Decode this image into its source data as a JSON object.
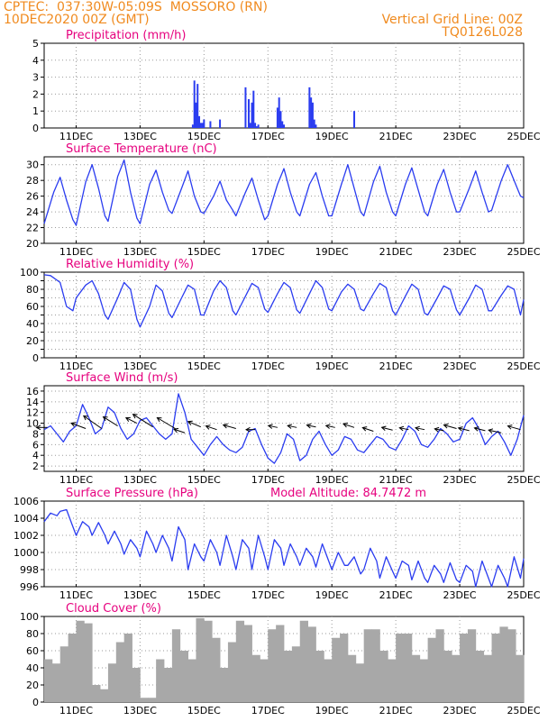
{
  "header": {
    "line1_left": "CPTEC:  037:30W-05:09S  MOSSORO (RN)",
    "line2_left": "10DEC2020 00Z (GMT)",
    "line2_right": "Vertical Grid Line: 00Z",
    "line3_right": "TQ0126L028"
  },
  "colors": {
    "header": "#f08a1e",
    "title": "#e6007e",
    "series": "#2a3cf0",
    "cloud": "#a8a8a8",
    "grid": "#9a9a9a"
  },
  "x_ticks": [
    "11DEC",
    "13DEC",
    "15DEC",
    "17DEC",
    "19DEC",
    "21DEC",
    "23DEC",
    "25DEC"
  ],
  "chart_data": [
    {
      "type": "bar",
      "title": "Precipitation (mm/h)",
      "ylim": [
        0,
        5
      ],
      "yticks": [
        0,
        1,
        2,
        3,
        4,
        5
      ],
      "xlim": [
        0,
        15
      ],
      "x": [
        4.65,
        4.7,
        4.75,
        4.8,
        4.85,
        4.9,
        4.95,
        5.0,
        5.2,
        5.5,
        6.3,
        6.4,
        6.45,
        6.5,
        6.55,
        6.6,
        6.65,
        6.7,
        7.3,
        7.35,
        7.4,
        7.45,
        7.5,
        8.3,
        8.35,
        8.4,
        8.45,
        8.5,
        9.7
      ],
      "values": [
        0.2,
        2.8,
        1.5,
        2.6,
        0.7,
        0.3,
        0.3,
        0.5,
        0.4,
        0.5,
        2.4,
        1.7,
        0.3,
        1.5,
        2.2,
        0.3,
        0.1,
        0.2,
        1.2,
        1.8,
        1.0,
        0.4,
        0.2,
        2.4,
        1.8,
        1.5,
        0.5,
        0.2,
        1.0
      ]
    },
    {
      "type": "line",
      "title": "Surface Temperature (nC)",
      "ylim": [
        20,
        31
      ],
      "yticks": [
        20,
        22,
        24,
        26,
        28,
        30
      ],
      "xlim": [
        0,
        15
      ],
      "x": [
        0,
        0.3,
        0.5,
        0.7,
        0.9,
        1.0,
        1.3,
        1.5,
        1.7,
        1.9,
        2.0,
        2.3,
        2.5,
        2.7,
        2.9,
        3.0,
        3.3,
        3.5,
        3.7,
        3.9,
        4.0,
        4.3,
        4.5,
        4.7,
        4.9,
        5.0,
        5.3,
        5.5,
        5.7,
        5.9,
        6.0,
        6.3,
        6.5,
        6.7,
        6.9,
        7.0,
        7.3,
        7.5,
        7.7,
        7.9,
        8.0,
        8.3,
        8.5,
        8.7,
        8.9,
        9.0,
        9.3,
        9.5,
        9.7,
        9.9,
        10.0,
        10.3,
        10.5,
        10.7,
        10.9,
        11.0,
        11.3,
        11.5,
        11.7,
        11.9,
        12.0,
        12.3,
        12.5,
        12.7,
        12.9,
        13.0,
        13.3,
        13.5,
        13.7,
        13.9,
        14.0,
        14.3,
        14.5,
        14.7,
        14.9,
        15.0
      ],
      "values": [
        22.5,
        26.5,
        28.4,
        25.5,
        23.0,
        22.3,
        27.8,
        30.0,
        27.0,
        23.5,
        22.8,
        28.5,
        30.6,
        26.5,
        23.2,
        22.5,
        27.5,
        29.3,
        26.5,
        24.2,
        23.8,
        27.0,
        29.2,
        26.0,
        24.0,
        23.8,
        26.0,
        27.9,
        25.5,
        24.2,
        23.5,
        26.5,
        28.3,
        25.5,
        23.0,
        23.5,
        27.5,
        29.5,
        26.5,
        24.0,
        23.5,
        27.5,
        29.0,
        26.0,
        23.5,
        23.5,
        27.5,
        30.0,
        27.0,
        24.0,
        23.5,
        27.8,
        29.8,
        26.5,
        24.0,
        23.5,
        27.5,
        29.6,
        26.8,
        24.0,
        23.5,
        27.5,
        29.4,
        26.5,
        24.0,
        24.0,
        27.0,
        29.2,
        26.5,
        24.0,
        24.2,
        28.0,
        30.0,
        28.0,
        26.0,
        25.8
      ]
    },
    {
      "type": "line",
      "title": "Relative Humidity (%)",
      "ylim": [
        0,
        100
      ],
      "yticks": [
        0,
        10,
        20,
        30,
        40,
        50,
        60,
        70,
        80,
        90,
        100
      ],
      "ytick_labels": [
        0,
        20,
        40,
        60,
        80,
        100
      ],
      "xlim": [
        0,
        15
      ],
      "x": [
        0,
        0.2,
        0.5,
        0.7,
        0.9,
        1.0,
        1.3,
        1.5,
        1.7,
        1.9,
        2.0,
        2.3,
        2.5,
        2.7,
        2.9,
        3.0,
        3.3,
        3.5,
        3.7,
        3.9,
        4.0,
        4.3,
        4.5,
        4.7,
        4.9,
        5.0,
        5.3,
        5.5,
        5.7,
        5.9,
        6.0,
        6.3,
        6.5,
        6.7,
        6.9,
        7.0,
        7.3,
        7.5,
        7.7,
        7.9,
        8.0,
        8.3,
        8.5,
        8.7,
        8.9,
        9.0,
        9.3,
        9.5,
        9.7,
        9.9,
        10.0,
        10.3,
        10.5,
        10.7,
        10.9,
        11.0,
        11.3,
        11.5,
        11.7,
        11.9,
        12.0,
        12.3,
        12.5,
        12.7,
        12.9,
        13.0,
        13.3,
        13.5,
        13.7,
        13.9,
        14.0,
        14.3,
        14.5,
        14.7,
        14.9,
        15.0
      ],
      "values": [
        97,
        96,
        88,
        60,
        55,
        70,
        85,
        90,
        75,
        50,
        45,
        70,
        88,
        80,
        45,
        36,
        60,
        85,
        78,
        52,
        47,
        70,
        85,
        80,
        50,
        50,
        78,
        90,
        82,
        55,
        50,
        72,
        87,
        82,
        57,
        53,
        75,
        88,
        82,
        56,
        52,
        75,
        90,
        82,
        57,
        55,
        77,
        86,
        80,
        57,
        55,
        75,
        87,
        82,
        55,
        50,
        72,
        86,
        80,
        52,
        50,
        70,
        84,
        80,
        56,
        50,
        70,
        85,
        80,
        55,
        55,
        73,
        84,
        80,
        50,
        68
      ]
    },
    {
      "type": "line",
      "title": "Surface Wind (m/s)",
      "ylim": [
        1,
        17
      ],
      "yticks": [
        2,
        4,
        6,
        8,
        10,
        12,
        14,
        16
      ],
      "xlim": [
        0,
        15
      ],
      "x": [
        0,
        0.2,
        0.4,
        0.6,
        0.8,
        1.0,
        1.2,
        1.4,
        1.6,
        1.8,
        2.0,
        2.2,
        2.4,
        2.6,
        2.8,
        3.0,
        3.2,
        3.4,
        3.6,
        3.8,
        4.0,
        4.2,
        4.4,
        4.6,
        4.8,
        5.0,
        5.2,
        5.4,
        5.6,
        5.8,
        6.0,
        6.2,
        6.4,
        6.6,
        6.8,
        7.0,
        7.2,
        7.4,
        7.6,
        7.8,
        8.0,
        8.2,
        8.4,
        8.6,
        8.8,
        9.0,
        9.2,
        9.4,
        9.6,
        9.8,
        10.0,
        10.2,
        10.4,
        10.6,
        10.8,
        11.0,
        11.2,
        11.4,
        11.6,
        11.8,
        12.0,
        12.2,
        12.4,
        12.6,
        12.8,
        13.0,
        13.2,
        13.4,
        13.6,
        13.8,
        14.0,
        14.2,
        14.4,
        14.6,
        14.8,
        15.0
      ],
      "values": [
        8.8,
        9.5,
        8.0,
        6.5,
        8.5,
        9.5,
        13.5,
        11.0,
        8.0,
        9.0,
        13.0,
        12.0,
        9.0,
        7.0,
        8.0,
        10.5,
        11.0,
        9.5,
        8.0,
        7.0,
        8.0,
        15.5,
        12.0,
        7.0,
        5.5,
        4.0,
        6.0,
        7.5,
        6.0,
        5.0,
        4.5,
        5.5,
        8.5,
        9.0,
        6.0,
        3.5,
        2.5,
        4.5,
        8.0,
        7.0,
        3.0,
        4.0,
        7.0,
        8.5,
        6.0,
        4.0,
        5.0,
        7.5,
        7.0,
        5.0,
        4.5,
        6.0,
        7.5,
        7.0,
        5.5,
        5.0,
        7.0,
        9.5,
        8.5,
        6.0,
        5.5,
        7.0,
        9.0,
        8.0,
        6.5,
        7.0,
        10.0,
        11.0,
        9.0,
        6.0,
        7.5,
        8.5,
        6.5,
        4.0,
        7.0,
        11.5
      ]
    },
    {
      "type": "line",
      "title": "Surface Pressure (hPa)",
      "annotation": "Model Altitude: 84.7472 m",
      "ylim": [
        996,
        1006
      ],
      "yticks": [
        996,
        998,
        1000,
        1002,
        1004,
        1006
      ],
      "xlim": [
        0,
        15
      ],
      "x": [
        0,
        0.2,
        0.4,
        0.5,
        0.7,
        0.9,
        1.0,
        1.2,
        1.4,
        1.5,
        1.7,
        1.9,
        2.0,
        2.2,
        2.4,
        2.5,
        2.7,
        2.9,
        3.0,
        3.2,
        3.4,
        3.5,
        3.7,
        3.9,
        4.0,
        4.2,
        4.4,
        4.5,
        4.7,
        4.9,
        5.0,
        5.2,
        5.4,
        5.5,
        5.7,
        5.9,
        6.0,
        6.2,
        6.4,
        6.5,
        6.7,
        6.9,
        7.0,
        7.2,
        7.4,
        7.5,
        7.7,
        7.9,
        8.0,
        8.2,
        8.4,
        8.5,
        8.7,
        8.9,
        9.0,
        9.2,
        9.4,
        9.5,
        9.7,
        9.9,
        10.0,
        10.2,
        10.4,
        10.5,
        10.7,
        10.9,
        11.0,
        11.2,
        11.4,
        11.5,
        11.7,
        11.9,
        12.0,
        12.2,
        12.4,
        12.5,
        12.7,
        12.9,
        13.0,
        13.2,
        13.4,
        13.5,
        13.7,
        13.9,
        14.0,
        14.2,
        14.4,
        14.5,
        14.7,
        14.9,
        15.0
      ],
      "values": [
        1003.6,
        1004.6,
        1004.3,
        1004.8,
        1005.0,
        1003.0,
        1002.0,
        1003.6,
        1003.0,
        1002.0,
        1003.5,
        1002.0,
        1001.0,
        1002.5,
        1001.0,
        999.8,
        1001.5,
        1000.5,
        999.5,
        1002.5,
        1001.0,
        1000.0,
        1002.0,
        1000.5,
        999.0,
        1003.0,
        1001.5,
        998.0,
        1001.0,
        999.5,
        999.0,
        1001.5,
        1000.0,
        998.5,
        1002.0,
        999.5,
        998.0,
        1001.5,
        1000.5,
        998.0,
        1002.0,
        999.5,
        998.0,
        1001.5,
        1000.5,
        998.5,
        1001.0,
        999.5,
        998.5,
        1000.5,
        999.5,
        998.3,
        1001.0,
        999.0,
        998.0,
        1000.0,
        998.5,
        998.5,
        999.5,
        997.5,
        998.0,
        1000.5,
        999.0,
        997.0,
        999.5,
        997.8,
        997.0,
        999.0,
        998.5,
        996.8,
        999.0,
        997.0,
        996.5,
        998.5,
        997.5,
        996.5,
        998.8,
        996.8,
        996.5,
        998.5,
        997.8,
        996.0,
        999.0,
        997.0,
        996.0,
        998.5,
        997.0,
        996.0,
        999.5,
        997.0,
        999.3
      ]
    },
    {
      "type": "bar",
      "title": "Cloud Cover (%)",
      "ylim": [
        0,
        100
      ],
      "yticks": [
        0,
        20,
        40,
        60,
        80,
        100
      ],
      "xlim": [
        0,
        15
      ],
      "x": [
        0,
        0.25,
        0.5,
        0.75,
        1.0,
        1.25,
        1.5,
        1.75,
        2.0,
        2.25,
        2.5,
        2.75,
        3.0,
        3.25,
        3.5,
        3.75,
        4.0,
        4.25,
        4.5,
        4.75,
        5.0,
        5.25,
        5.5,
        5.75,
        6.0,
        6.25,
        6.5,
        6.75,
        7.0,
        7.25,
        7.5,
        7.75,
        8.0,
        8.25,
        8.5,
        8.75,
        9.0,
        9.25,
        9.5,
        9.75,
        10.0,
        10.25,
        10.5,
        10.75,
        11.0,
        11.25,
        11.5,
        11.75,
        12.0,
        12.25,
        12.5,
        12.75,
        13.0,
        13.25,
        13.5,
        13.75,
        14.0,
        14.25,
        14.5,
        14.75
      ],
      "values": [
        50,
        45,
        65,
        80,
        95,
        92,
        20,
        15,
        45,
        70,
        80,
        40,
        5,
        5,
        50,
        40,
        85,
        60,
        50,
        98,
        95,
        75,
        40,
        70,
        95,
        90,
        55,
        50,
        85,
        90,
        60,
        65,
        95,
        88,
        60,
        50,
        75,
        80,
        55,
        45,
        85,
        85,
        60,
        50,
        80,
        80,
        55,
        50,
        75,
        85,
        60,
        55,
        80,
        85,
        60,
        55,
        80,
        88,
        85,
        55
      ]
    }
  ]
}
